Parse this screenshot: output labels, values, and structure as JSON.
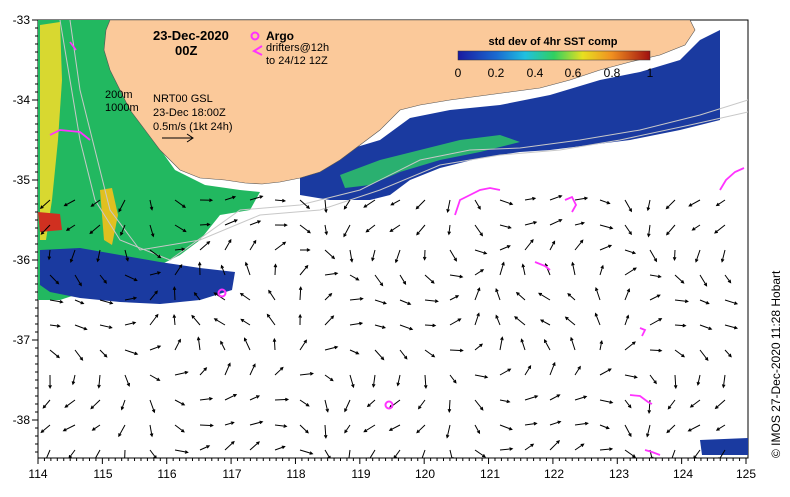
{
  "map": {
    "date": "23-Dec-2020",
    "time": "00Z",
    "argo_label": "Argo",
    "drifters_line1": "drifters@12h",
    "drifters_line2": "to 24/12 12Z",
    "isobath_200": "200m",
    "isobath_1000": "1000m",
    "model_line1": "NRT00 GSL",
    "model_line2": "23-Dec 18:00Z",
    "scale_label": "0.5m/s (1kt 24h)",
    "colorbar_title": "std dev of 4hr SST comp",
    "colorbar_ticks": [
      "0",
      "0.2",
      "0.4",
      "0.6",
      "0.8",
      "1"
    ],
    "credit": "© IMOS 27-Dec-2020 11:28 Hobart",
    "lon_ticks": [
      "114",
      "115",
      "116",
      "117",
      "118",
      "119",
      "120",
      "121",
      "122",
      "123",
      "124",
      "125"
    ],
    "lat_ticks": [
      "-33",
      "-34",
      "-35",
      "-36",
      "-37",
      "-38"
    ]
  },
  "colors": {
    "land": "#fbc99a",
    "low_std": "#1a3aa0",
    "mid_std": "#22c070",
    "high_std": "#e8e020",
    "drifter": "#ff33ff"
  }
}
